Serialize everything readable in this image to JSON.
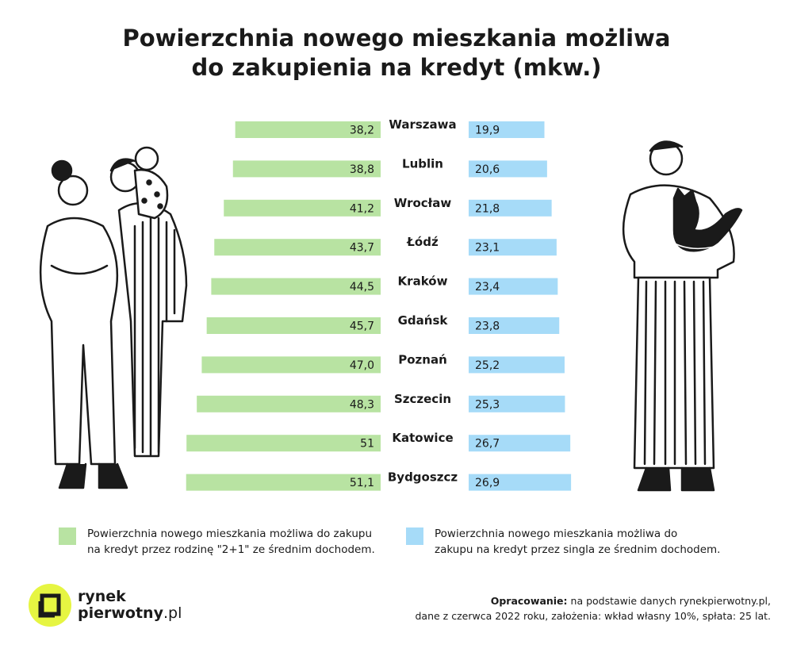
{
  "title_lines": [
    "Powierzchnia nowego mieszkania możliwa",
    "do zakupienia na kredyt (mkw.)"
  ],
  "colors": {
    "family": "#b8e3a2",
    "single": "#a6dbf8",
    "logo_accent": "#e6f542",
    "ink": "#1a1a1a"
  },
  "chart_data": {
    "type": "bar",
    "orientation": "diverging-horizontal",
    "title": "Powierzchnia nowego mieszkania możliwa do zakupienia na kredyt (mkw.)",
    "categories": [
      "Warszawa",
      "Lublin",
      "Wrocław",
      "Łódź",
      "Kraków",
      "Gdańsk",
      "Poznań",
      "Szczecin",
      "Katowice",
      "Bydgoszcz"
    ],
    "series": [
      {
        "values": [
          38.2,
          38.8,
          41.2,
          43.7,
          44.5,
          45.7,
          47.0,
          48.3,
          51,
          51.1
        ],
        "labels": [
          "38,2",
          "38,8",
          "41,2",
          "43,7",
          "44,5",
          "45,7",
          "47,0",
          "48,3",
          "51",
          "51,1"
        ]
      },
      {
        "values": [
          19.9,
          20.6,
          21.8,
          23.1,
          23.4,
          23.8,
          25.2,
          25.3,
          26.7,
          26.9
        ],
        "labels": [
          "19,9",
          "20,6",
          "21,8",
          "23,1",
          "23,4",
          "23,8",
          "25,2",
          "25,3",
          "26,7",
          "26,9"
        ]
      }
    ],
    "legend": "bottom"
  },
  "legend": {
    "family_lines": [
      "Powierzchnia nowego mieszkania możliwa do zakupu",
      "na kredyt przez rodzinę \"2+1\" ze średnim dochodem."
    ],
    "single_lines": [
      "Powierzchnia nowego mieszkania możliwa do",
      "zakupu na kredyt przez singla ze średnim dochodem."
    ]
  },
  "logo": {
    "line1": "rynek",
    "line2": "pierwotny",
    "domain": ".pl"
  },
  "source": {
    "bold": "Opracowanie:",
    "line1": " na podstawie danych rynekpierwotny.pl,",
    "line2": "dane z czerwca 2022 roku, założenia: wkład własny 10%, spłata: 25 lat."
  },
  "illustrations": [
    "family-illustration",
    "person-with-cat-illustration"
  ]
}
